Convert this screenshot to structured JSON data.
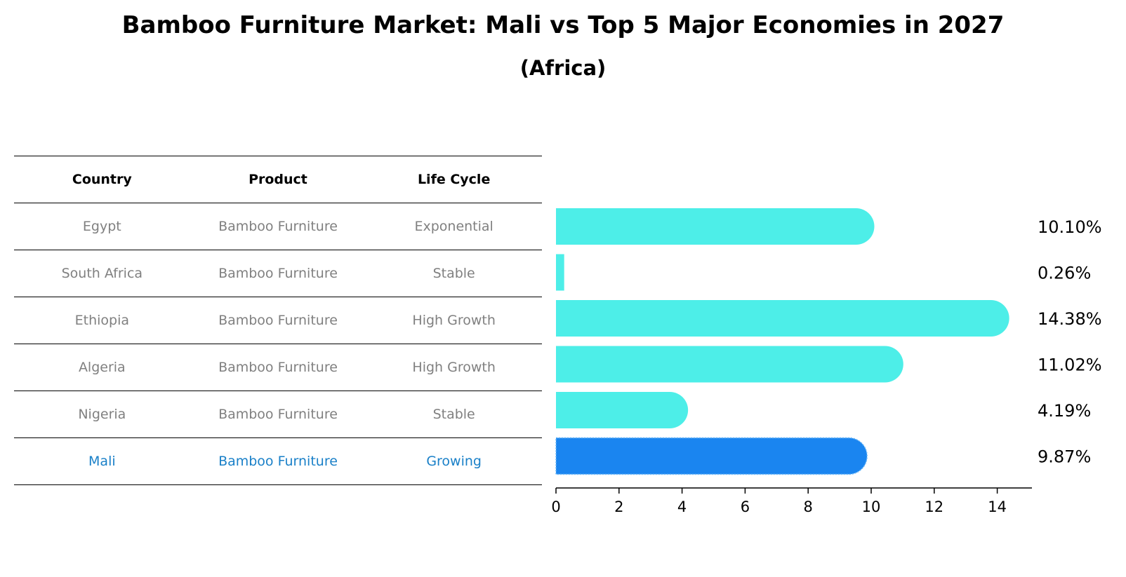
{
  "title": "Bamboo Furniture Market: Mali vs Top 5 Major Economies in 2027",
  "subtitle": "(Africa)",
  "table": {
    "headers": [
      "Country",
      "Product",
      "Life Cycle"
    ],
    "rows": [
      {
        "country": "Egypt",
        "product": "Bamboo Furniture",
        "life_cycle": "Exponential"
      },
      {
        "country": "South Africa",
        "product": "Bamboo Furniture",
        "life_cycle": "Stable"
      },
      {
        "country": "Ethiopia",
        "product": "Bamboo Furniture",
        "life_cycle": "High Growth"
      },
      {
        "country": "Algeria",
        "product": "Bamboo Furniture",
        "life_cycle": "High Growth"
      },
      {
        "country": "Nigeria",
        "product": "Bamboo Furniture",
        "life_cycle": "Stable"
      },
      {
        "country": "Mali",
        "product": "Bamboo Furniture",
        "life_cycle": "Growing"
      }
    ]
  },
  "colors": {
    "bar": "#4deee8",
    "highlight_bar": "#1a85f0",
    "highlight_text": "#1a80c8",
    "muted_text": "#808080"
  },
  "chart_data": {
    "type": "bar",
    "orientation": "horizontal",
    "categories": [
      "Egypt",
      "South Africa",
      "Ethiopia",
      "Algeria",
      "Nigeria",
      "Mali"
    ],
    "values": [
      10.1,
      0.26,
      14.38,
      11.02,
      4.19,
      9.87
    ],
    "value_labels": [
      "10.10%",
      "0.26%",
      "14.38%",
      "11.02%",
      "4.19%",
      "9.87%"
    ],
    "highlight": "Mali",
    "xlim": [
      0,
      15.1
    ],
    "xticks": [
      0,
      2,
      4,
      6,
      8,
      10,
      12,
      14
    ],
    "xlabel": "",
    "ylabel": ""
  }
}
